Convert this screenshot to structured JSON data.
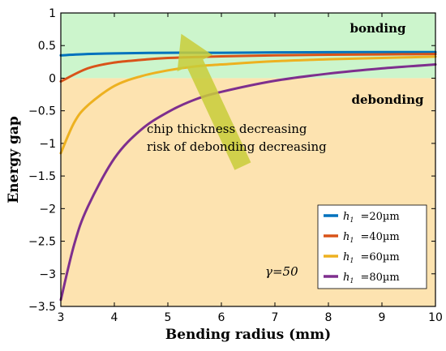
{
  "chart_data": {
    "type": "line",
    "xlabel": "Bending radius (mm)",
    "ylabel": "Energy gap",
    "xlim": [
      3,
      10
    ],
    "ylim": [
      -3.5,
      1
    ],
    "xticks": [
      "3",
      "4",
      "5",
      "6",
      "7",
      "8",
      "9",
      "10"
    ],
    "yticks": [
      "1",
      "0.5",
      "0",
      "−0.5",
      "−1",
      "−1.5",
      "−2",
      "−2.5",
      "−3",
      "−3.5"
    ],
    "regions": [
      {
        "label": "bonding",
        "y_range": [
          0,
          1
        ],
        "color": "#ccf5cc"
      },
      {
        "label": "debonding",
        "y_range": [
          -3.5,
          0
        ],
        "color": "#fde3b0"
      }
    ],
    "annotation": {
      "lines": [
        "chip thickness decreasing",
        "risk of debonding decreasing"
      ],
      "arrow_from": [
        6.4,
        -1.35
      ],
      "arrow_to": [
        5.25,
        0.68
      ],
      "arrow_color": "#c8cc3a"
    },
    "gamma_label": "γ=50",
    "series": [
      {
        "name": "h1=20µm",
        "color": "#0072bd",
        "x": [
          3,
          3.5,
          4,
          5,
          6,
          7,
          8,
          9,
          10
        ],
        "y": [
          0.35,
          0.37,
          0.38,
          0.39,
          0.39,
          0.395,
          0.398,
          0.4,
          0.4
        ]
      },
      {
        "name": "h1=40µm",
        "color": "#d95319",
        "x": [
          3,
          3.5,
          4,
          4.5,
          5,
          6,
          7,
          8,
          9,
          10
        ],
        "y": [
          -0.05,
          0.15,
          0.24,
          0.28,
          0.31,
          0.335,
          0.35,
          0.36,
          0.365,
          0.37
        ]
      },
      {
        "name": "h1=60µm",
        "color": "#edb120",
        "x": [
          3,
          3.25,
          3.5,
          4,
          4.5,
          5,
          5.5,
          6,
          7,
          8,
          9,
          10
        ],
        "y": [
          -1.15,
          -0.68,
          -0.42,
          -0.12,
          0.03,
          0.12,
          0.18,
          0.21,
          0.26,
          0.29,
          0.31,
          0.33
        ]
      },
      {
        "name": "h1=80µm",
        "color": "#7e2f8e",
        "x": [
          3,
          3.25,
          3.5,
          4,
          4.5,
          5,
          5.5,
          6,
          7,
          8,
          9,
          10
        ],
        "y": [
          -3.4,
          -2.55,
          -1.98,
          -1.23,
          -0.79,
          -0.52,
          -0.33,
          -0.21,
          -0.04,
          0.07,
          0.15,
          0.21
        ]
      }
    ],
    "legend": {
      "placement": "lower-right",
      "entries": [
        {
          "symbol": "h",
          "subscript": "1",
          "text": "=20µm"
        },
        {
          "symbol": "h",
          "subscript": "1",
          "text": "=40µm"
        },
        {
          "symbol": "h",
          "subscript": "1",
          "text": "=60µm"
        },
        {
          "symbol": "h",
          "subscript": "1",
          "text": "=80µm"
        }
      ]
    }
  }
}
